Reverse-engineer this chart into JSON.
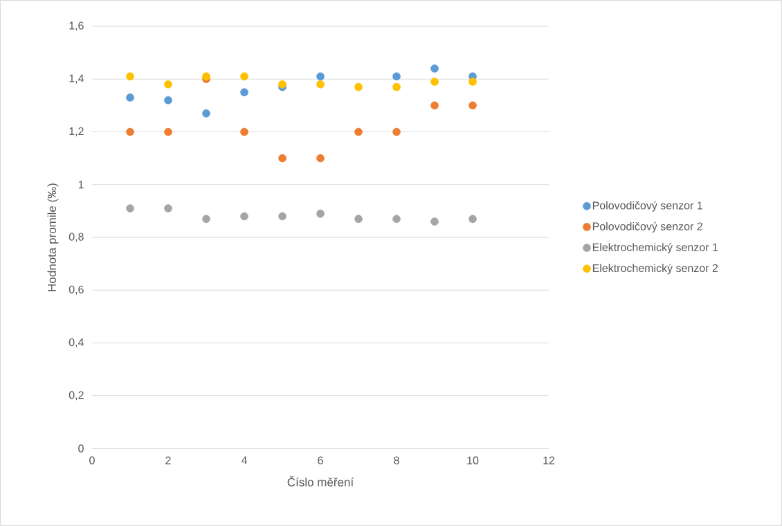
{
  "chart_data": {
    "type": "scatter",
    "xlabel": "Číslo měření",
    "ylabel": "Hodnota promile (‰)",
    "x": [
      1,
      2,
      3,
      4,
      5,
      6,
      7,
      8,
      9,
      10
    ],
    "series": [
      {
        "name": "Polovodičový senzor 1",
        "color": "#5b9bd5",
        "values": [
          1.33,
          1.32,
          1.27,
          1.35,
          1.37,
          1.41,
          null,
          1.41,
          1.44,
          1.41
        ]
      },
      {
        "name": "Polovodičový senzor 2",
        "color": "#ed7d31",
        "values": [
          1.2,
          1.2,
          1.4,
          1.2,
          1.1,
          1.1,
          1.2,
          1.2,
          1.3,
          1.3
        ]
      },
      {
        "name": "Elektrochemický senzor 1",
        "color": "#a5a5a5",
        "values": [
          0.91,
          0.91,
          0.87,
          0.88,
          0.88,
          0.89,
          0.87,
          0.87,
          0.86,
          0.87
        ]
      },
      {
        "name": "Elektrochemický senzor 2",
        "color": "#ffc000",
        "values": [
          1.41,
          1.38,
          1.41,
          1.41,
          1.38,
          1.38,
          1.37,
          1.37,
          1.39,
          1.39
        ]
      }
    ],
    "xlim": [
      0,
      12
    ],
    "xticks": [
      0,
      2,
      4,
      6,
      8,
      10,
      12
    ],
    "ylim": [
      0,
      1.6
    ],
    "yticks": [
      0,
      {
        "value": 0.2,
        "label": "0,2"
      },
      {
        "value": 0.4,
        "label": "0,4"
      },
      {
        "value": 0.6,
        "label": "0,6"
      },
      {
        "value": 0.8,
        "label": "0,8"
      },
      1,
      {
        "value": 1.2,
        "label": "1,2"
      },
      {
        "value": 1.4,
        "label": "1,4"
      },
      {
        "value": 1.6,
        "label": "1,6"
      }
    ],
    "grid": "y",
    "legend": "right",
    "marker": "circle"
  }
}
